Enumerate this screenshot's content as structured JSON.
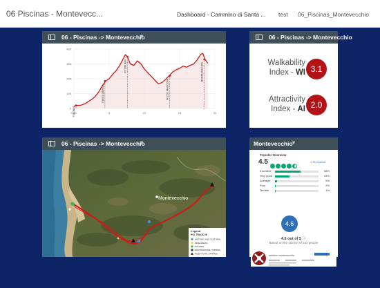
{
  "topbar": {
    "title": "06 Piscinas - Montevecc...",
    "breadcrumbs": [
      "Dashboard - Cammino di Santa ...",
      "test",
      "06_Piscinas_Montevecchio"
    ]
  },
  "elevation_widget": {
    "title": "06 - Piscinas -> Montevecchio"
  },
  "indices_widget": {
    "title": "06 - Piscinas -> Montevecchio",
    "walkability": {
      "label": "Walkability Index - ",
      "code": "WI",
      "value": "3.1"
    },
    "attractivity": {
      "label": "Attractivity Index - ",
      "code": "AI",
      "value": "2.0"
    }
  },
  "map_widget": {
    "title": "06 - Piscinas -> Montevecchio",
    "place_label": "Montevecchio",
    "legend": {
      "title": "Legend",
      "subtitle": "POI_TRACK 06",
      "items": [
        {
          "label": "HISTORIC AND CULTURAL",
          "color": "#4a90e2"
        },
        {
          "label": "MINE AREAS",
          "color": "#e8d84a"
        },
        {
          "label": "NATURAL",
          "color": "#3cb44b"
        },
        {
          "label": "RISTORAZIONE_TAPPA06",
          "color": "#333333"
        },
        {
          "label": "RICETTIVITA_TAPPA06",
          "color": "#111111"
        }
      ]
    }
  },
  "trip_widget": {
    "title": "Montevecchio",
    "overview_title": "Traveler Overview",
    "score": "4.5",
    "bubbles": [
      1,
      1,
      1,
      1,
      0.5
    ],
    "reviews": "276 reviews",
    "ratings": [
      {
        "label": "Excellent",
        "pct": 58
      },
      {
        "label": "Very good",
        "pct": 34
      },
      {
        "label": "Average",
        "pct": 5
      },
      {
        "label": "Poor",
        "pct": 2
      },
      {
        "label": "Terrible",
        "pct": 1
      }
    ],
    "circle_score": "4.6",
    "out_of": "4.6 out of 5",
    "opinion": "Based on the opinion of 152 people",
    "promo_name": "miniera montevecchio"
  },
  "chart_data": {
    "type": "area",
    "title": "",
    "xlabel": "",
    "ylabel": "",
    "xlim": [
      0,
      20
    ],
    "ylim": [
      0,
      400
    ],
    "x_ticks": [
      0,
      5,
      10,
      15,
      20
    ],
    "x_tick_labels": [
      "0 km",
      "5",
      "10",
      "15",
      "20"
    ],
    "y_ticks": [
      0,
      100,
      200,
      300,
      400
    ],
    "color": "#cc1a1a",
    "x": [
      0,
      0.5,
      1.0,
      1.5,
      2.0,
      2.5,
      3.0,
      3.5,
      4.0,
      4.5,
      5.0,
      5.5,
      6.0,
      6.5,
      7.0,
      7.3,
      7.6,
      8.0,
      8.5,
      9.0,
      9.5,
      10.0,
      10.5,
      11.0,
      11.5,
      12.0,
      12.5,
      13.0,
      13.5,
      14.0,
      14.5,
      15.0,
      15.5,
      16.0,
      16.5,
      17.0,
      17.5,
      18.0,
      18.3,
      18.6,
      19.0
    ],
    "y": [
      15,
      20,
      22,
      30,
      45,
      60,
      80,
      110,
      150,
      185,
      200,
      230,
      255,
      290,
      335,
      362,
      348,
      300,
      290,
      320,
      300,
      265,
      240,
      215,
      190,
      165,
      175,
      195,
      220,
      245,
      260,
      270,
      285,
      278,
      290,
      300,
      328,
      365,
      370,
      330,
      305
    ],
    "annotations": [
      {
        "label": "PISCINAS",
        "x": 0.3
      },
      {
        "label": "PUNTA ISBASSY",
        "x": 4.4
      },
      {
        "label": "PITZINURRI",
        "x": 7.6
      },
      {
        "label": "POZZO AMSICORA",
        "x": 13.6
      },
      {
        "label": "MONTEVECCHIO",
        "x": 18.5
      }
    ]
  }
}
